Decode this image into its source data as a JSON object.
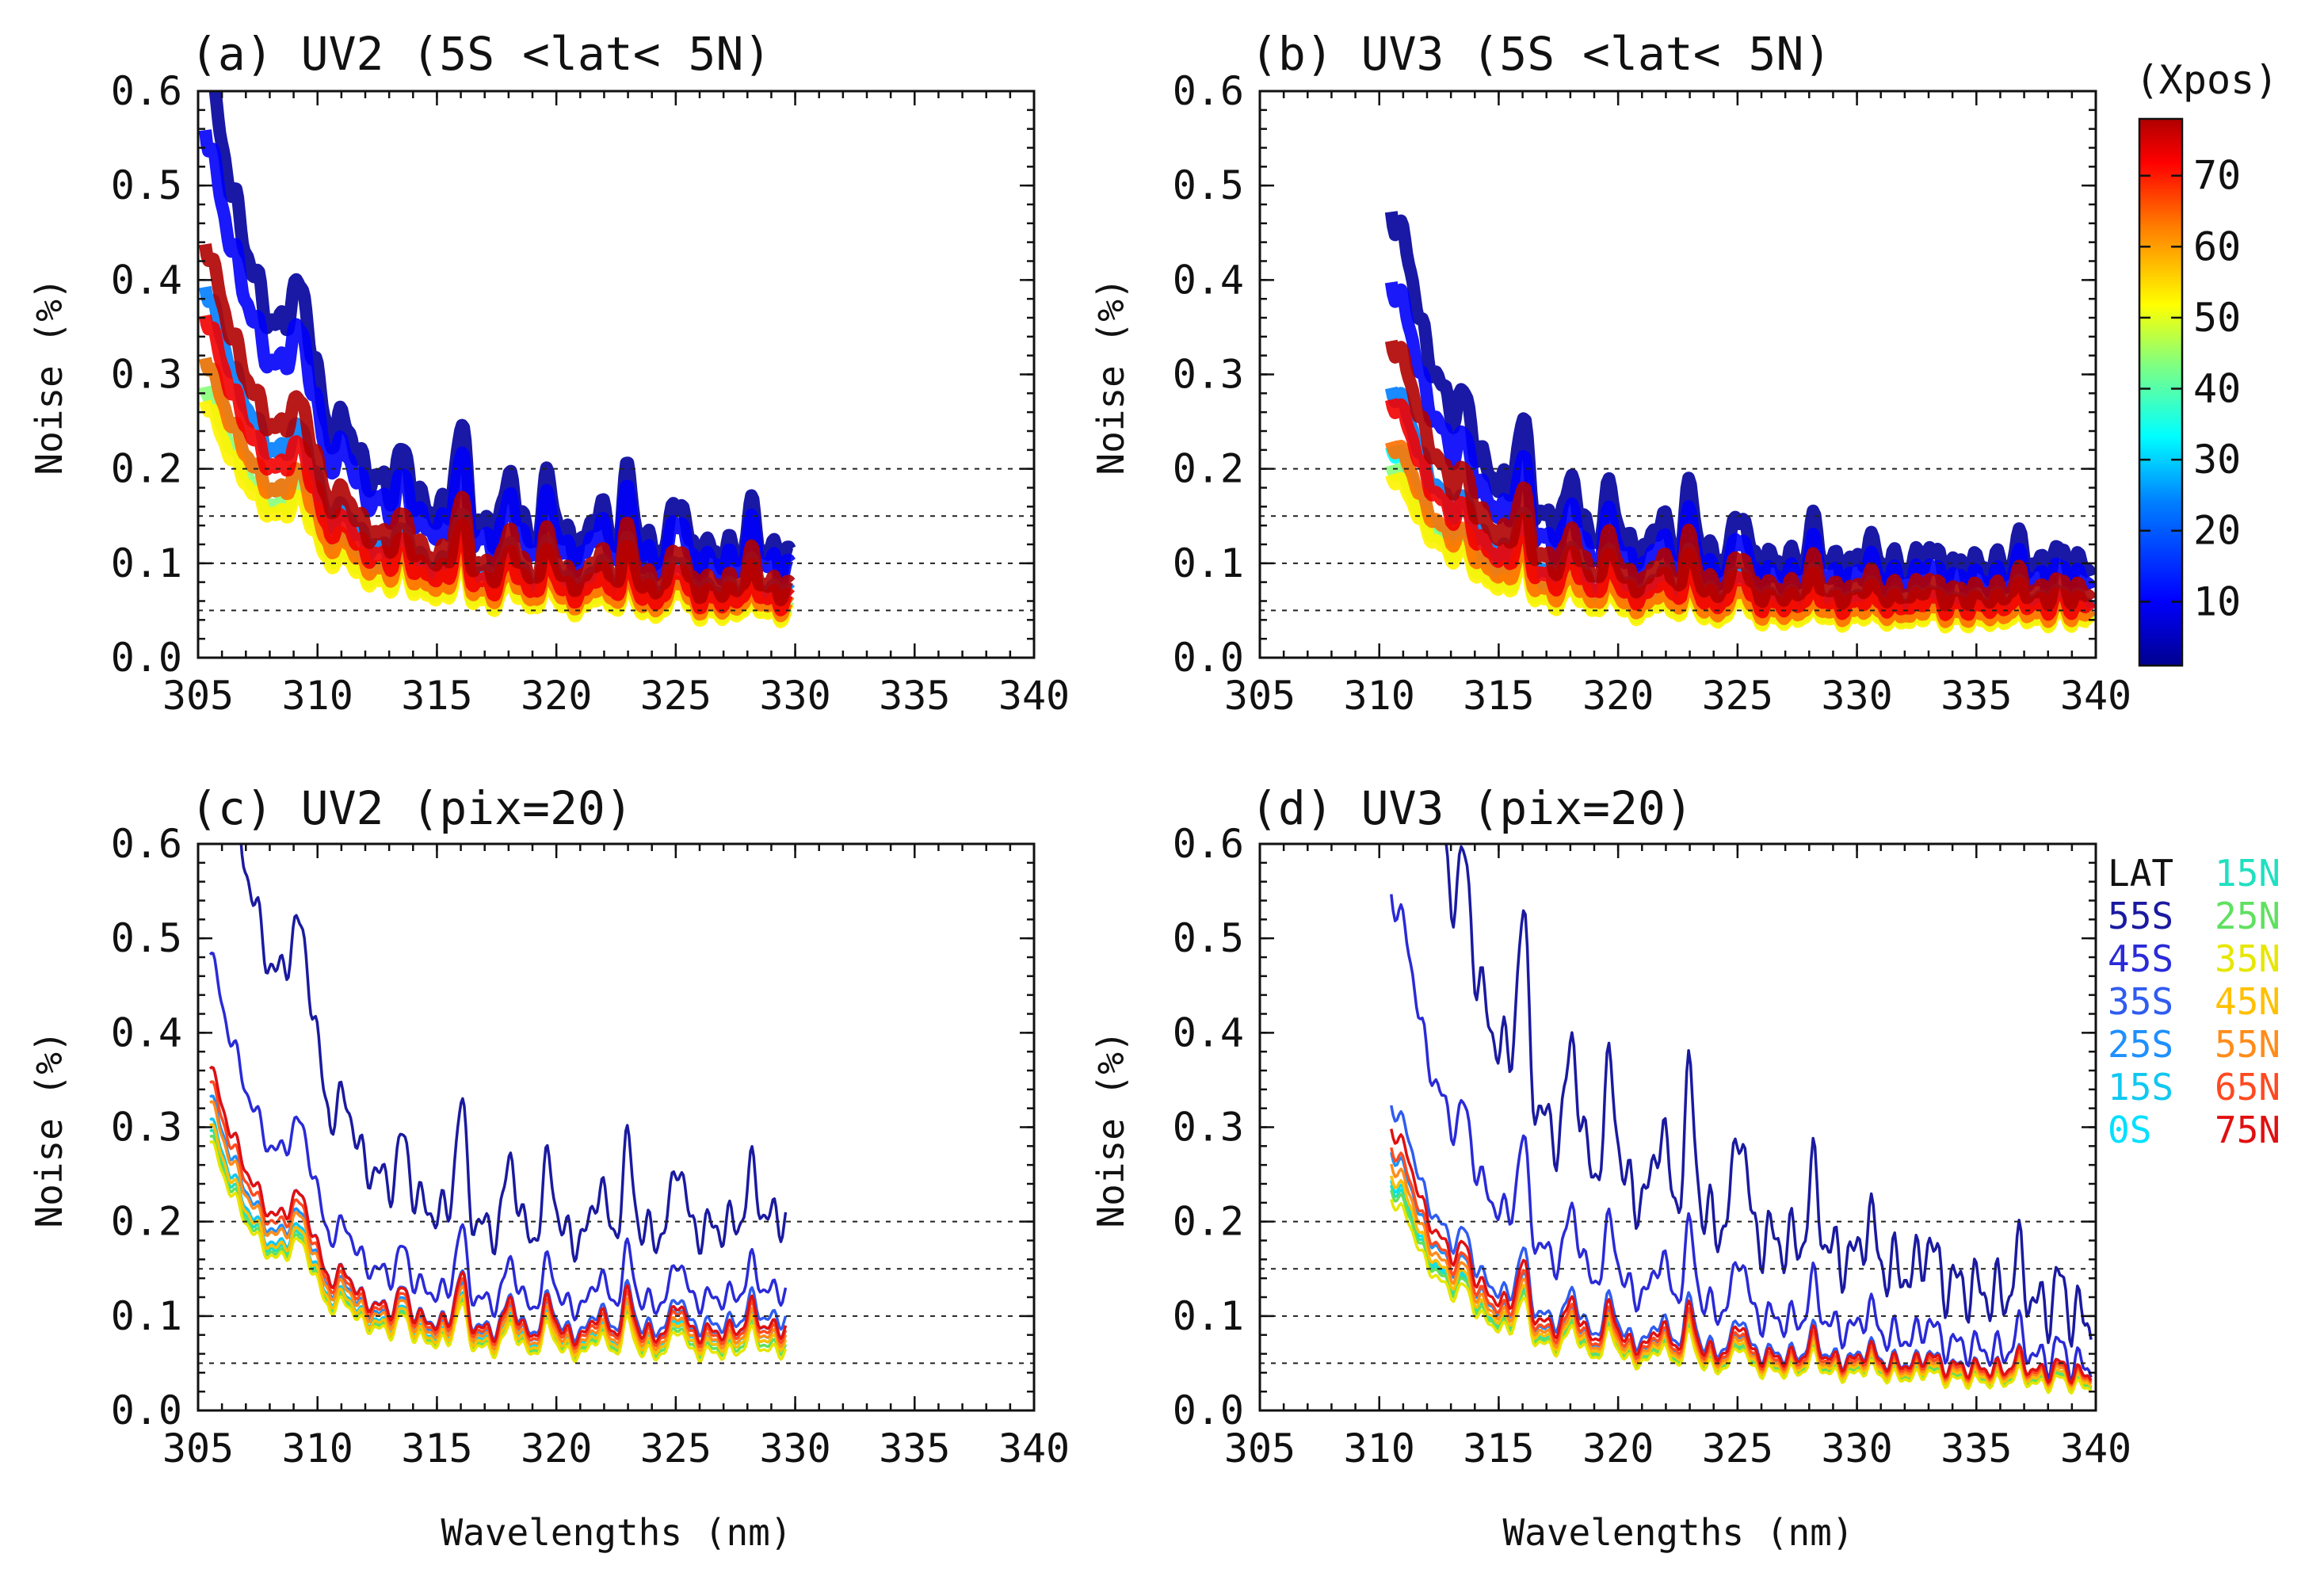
{
  "chart_data": [
    {
      "panel": "a",
      "title": "(a) UV2 (5S <lat< 5N)",
      "type": "line",
      "xlabel": "",
      "ylabel": "Noise (%)",
      "xlim": [
        305,
        340
      ],
      "ylim": [
        0.0,
        0.6
      ],
      "xticks": [
        "305",
        "310",
        "315",
        "320",
        "325",
        "330",
        "335",
        "340"
      ],
      "yticks": [
        "0.0",
        "0.1",
        "0.2",
        "0.3",
        "0.4",
        "0.5",
        "0.6"
      ],
      "reference_lines": [
        0.05,
        0.1,
        0.15,
        0.2
      ],
      "wavelength_range": [
        305.3,
        329.8
      ],
      "series_by": "Xpos",
      "series": [
        {
          "xpos": 2,
          "noise_scale": 2.1
        },
        {
          "xpos": 10,
          "noise_scale": 1.85
        },
        {
          "xpos": 20,
          "noise_scale": 1.3
        },
        {
          "xpos": 30,
          "noise_scale": 1.05
        },
        {
          "xpos": 40,
          "noise_scale": 0.95
        },
        {
          "xpos": 50,
          "noise_scale": 0.9
        },
        {
          "xpos": 60,
          "noise_scale": 1.05
        },
        {
          "xpos": 70,
          "noise_scale": 1.2
        },
        {
          "xpos": 78,
          "noise_scale": 1.45
        }
      ]
    },
    {
      "panel": "b",
      "title": "(b) UV3 (5S <lat< 5N)",
      "type": "line",
      "xlabel": "",
      "ylabel": "Noise (%)",
      "xlim": [
        305,
        340
      ],
      "ylim": [
        0.0,
        0.6
      ],
      "xticks": [
        "305",
        "310",
        "315",
        "320",
        "325",
        "330",
        "335",
        "340"
      ],
      "yticks": [
        "0.0",
        "0.1",
        "0.2",
        "0.3",
        "0.4",
        "0.5",
        "0.6"
      ],
      "reference_lines": [
        0.05,
        0.1,
        0.15,
        0.2
      ],
      "wavelength_range": [
        310.5,
        339.8
      ],
      "series_by": "Xpos",
      "series": [
        {
          "xpos": 2,
          "noise_scale": 1.9
        },
        {
          "xpos": 10,
          "noise_scale": 1.6
        },
        {
          "xpos": 20,
          "noise_scale": 1.15
        },
        {
          "xpos": 30,
          "noise_scale": 0.9
        },
        {
          "xpos": 40,
          "noise_scale": 0.82
        },
        {
          "xpos": 50,
          "noise_scale": 0.78
        },
        {
          "xpos": 60,
          "noise_scale": 0.92
        },
        {
          "xpos": 70,
          "noise_scale": 1.1
        },
        {
          "xpos": 78,
          "noise_scale": 1.35
        }
      ]
    },
    {
      "panel": "c",
      "title": "(c) UV2 (pix=20)",
      "type": "line",
      "xlabel": "Wavelengths (nm)",
      "ylabel": "Noise (%)",
      "xlim": [
        305,
        340
      ],
      "ylim": [
        0.0,
        0.6
      ],
      "xticks": [
        "305",
        "310",
        "315",
        "320",
        "325",
        "330",
        "335",
        "340"
      ],
      "yticks": [
        "0.0",
        "0.1",
        "0.2",
        "0.3",
        "0.4",
        "0.5",
        "0.6"
      ],
      "reference_lines": [
        0.05,
        0.1,
        0.15,
        0.2
      ],
      "wavelength_range": [
        305.5,
        329.6
      ],
      "series_by": "LAT",
      "series": [
        {
          "name": "55S",
          "color": "#1a1aa0",
          "end_value": 0.21,
          "noise_scale": 2.7
        },
        {
          "name": "45S",
          "color": "#2a2ad8",
          "end_value": 0.13,
          "noise_scale": 1.6
        },
        {
          "name": "35S",
          "color": "#2f5cf0",
          "end_value": 0.1,
          "noise_scale": 1.2
        },
        {
          "name": "25S",
          "color": "#1e90ff",
          "end_value": 0.09,
          "noise_scale": 1.1
        },
        {
          "name": "15S",
          "color": "#10c8f0",
          "end_value": 0.08,
          "noise_scale": 1.02
        },
        {
          "name": "0S",
          "color": "#00e0ff",
          "end_value": 0.08,
          "noise_scale": 1.0
        },
        {
          "name": "15N",
          "color": "#20e0c0",
          "end_value": 0.075,
          "noise_scale": 0.98
        },
        {
          "name": "25N",
          "color": "#60e060",
          "end_value": 0.07,
          "noise_scale": 0.96
        },
        {
          "name": "35N",
          "color": "#e6e600",
          "end_value": 0.065,
          "noise_scale": 0.94
        },
        {
          "name": "45N",
          "color": "#ffc000",
          "end_value": 0.075,
          "noise_scale": 1.0
        },
        {
          "name": "55N",
          "color": "#ff8c1a",
          "end_value": 0.08,
          "noise_scale": 1.08
        },
        {
          "name": "65N",
          "color": "#ff4a20",
          "end_value": 0.085,
          "noise_scale": 1.15
        },
        {
          "name": "75N",
          "color": "#e01010",
          "end_value": 0.09,
          "noise_scale": 1.2
        }
      ]
    },
    {
      "panel": "d",
      "title": "(d) UV3 (pix=20)",
      "type": "line",
      "xlabel": "Wavelengths (nm)",
      "ylabel": "Noise (%)",
      "xlim": [
        305,
        340
      ],
      "ylim": [
        0.0,
        0.6
      ],
      "xticks": [
        "305",
        "310",
        "315",
        "320",
        "325",
        "330",
        "335",
        "340"
      ],
      "yticks": [
        "0.0",
        "0.1",
        "0.2",
        "0.3",
        "0.4",
        "0.5",
        "0.6"
      ],
      "reference_lines": [
        0.05,
        0.1,
        0.15,
        0.2
      ],
      "wavelength_range": [
        310.5,
        339.8
      ],
      "series_by": "LAT",
      "series": [
        {
          "name": "55S",
          "color": "#1a1aa0",
          "end_value": 0.075,
          "noise_scale": 4.0
        },
        {
          "name": "45S",
          "color": "#2a2ad8",
          "end_value": 0.035,
          "noise_scale": 2.2
        },
        {
          "name": "35S",
          "color": "#2f5cf0",
          "end_value": 0.03,
          "noise_scale": 1.3
        },
        {
          "name": "25S",
          "color": "#1e90ff",
          "end_value": 0.028,
          "noise_scale": 1.1
        },
        {
          "name": "15S",
          "color": "#10c8f0",
          "end_value": 0.025,
          "noise_scale": 1.0
        },
        {
          "name": "0S",
          "color": "#00e0ff",
          "end_value": 0.025,
          "noise_scale": 0.98
        },
        {
          "name": "15N",
          "color": "#20e0c0",
          "end_value": 0.024,
          "noise_scale": 0.96
        },
        {
          "name": "25N",
          "color": "#60e060",
          "end_value": 0.022,
          "noise_scale": 0.94
        },
        {
          "name": "35N",
          "color": "#e6e600",
          "end_value": 0.02,
          "noise_scale": 0.9
        },
        {
          "name": "45N",
          "color": "#ffc000",
          "end_value": 0.025,
          "noise_scale": 1.0
        },
        {
          "name": "55N",
          "color": "#ff8c1a",
          "end_value": 0.028,
          "noise_scale": 1.05
        },
        {
          "name": "65N",
          "color": "#ff4a20",
          "end_value": 0.03,
          "noise_scale": 1.12
        },
        {
          "name": "75N",
          "color": "#e01010",
          "end_value": 0.032,
          "noise_scale": 1.2
        }
      ]
    }
  ],
  "colorbar": {
    "title": "(Xpos)",
    "ticks": [
      "10",
      "20",
      "30",
      "40",
      "50",
      "60",
      "70"
    ],
    "range": [
      1,
      78
    ],
    "colormap": [
      "#00008f",
      "#0000ff",
      "#0080ff",
      "#00ffff",
      "#80ff80",
      "#ffff00",
      "#ff8000",
      "#ff0000",
      "#b00000"
    ]
  },
  "legend": {
    "header": "LAT",
    "items": [
      {
        "label": "55S",
        "color": "#1a1aa0"
      },
      {
        "label": "45S",
        "color": "#2a2ad8"
      },
      {
        "label": "35S",
        "color": "#2f5cf0"
      },
      {
        "label": "25S",
        "color": "#1e90ff"
      },
      {
        "label": "15S",
        "color": "#10c8f0"
      },
      {
        "label": "0S",
        "color": "#00e0ff"
      },
      {
        "label": "15N",
        "color": "#20e0c0"
      },
      {
        "label": "25N",
        "color": "#60e060"
      },
      {
        "label": "35N",
        "color": "#e6e600"
      },
      {
        "label": "45N",
        "color": "#ffc000"
      },
      {
        "label": "55N",
        "color": "#ff8c1a"
      },
      {
        "label": "65N",
        "color": "#ff4a20"
      },
      {
        "label": "75N",
        "color": "#e01010"
      }
    ]
  }
}
